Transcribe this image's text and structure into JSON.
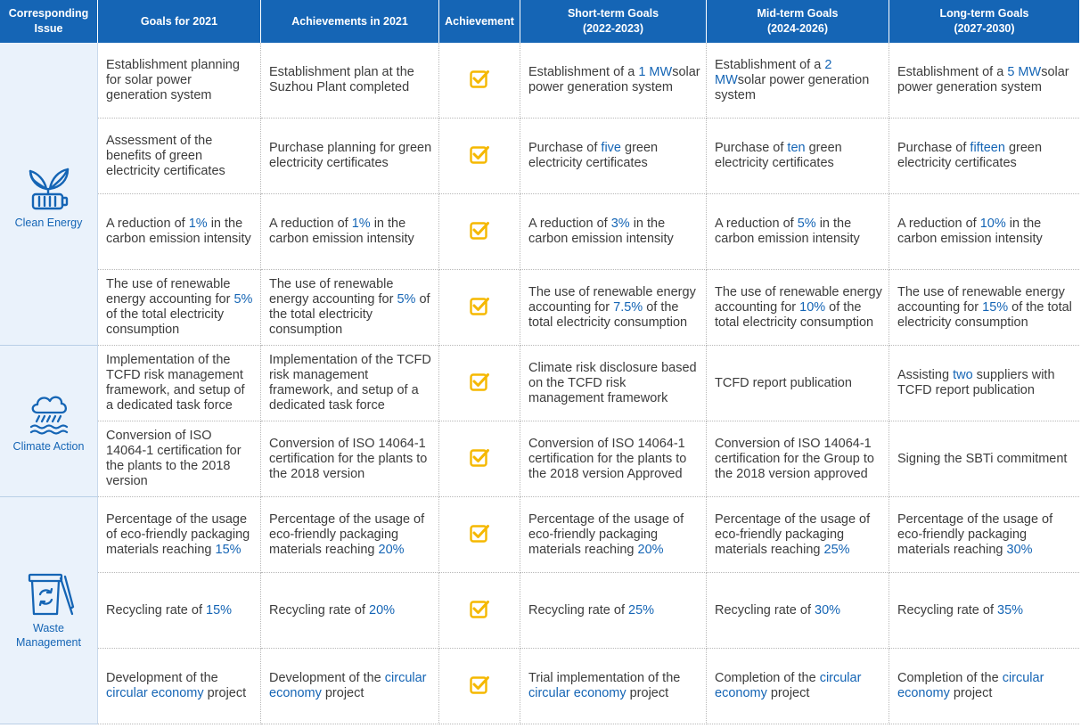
{
  "colors": {
    "header_bg": "#1565b5",
    "highlight": "#1565b5",
    "issue_bg": "#eaf2fb",
    "check": "#f5b800"
  },
  "headers": {
    "issue": [
      "Corresponding",
      "Issue"
    ],
    "goals_2021": "Goals for 2021",
    "achievements_2021": "Achievements in 2021",
    "achievement": "Achievement",
    "short_term": [
      "Short-term Goals",
      "(2022-2023)"
    ],
    "mid_term": [
      "Mid-term Goals",
      "(2024-2026)"
    ],
    "long_term": [
      "Long-term Goals",
      "(2027-2030)"
    ]
  },
  "issues": {
    "clean_energy": {
      "name": "Clean Energy",
      "icon": "plant-battery-icon"
    },
    "climate_action": {
      "name": "Climate Action",
      "icon": "cloud-rain-icon"
    },
    "waste_management": {
      "name": [
        "Waste",
        "Management"
      ],
      "icon": "recycle-bin-icon"
    }
  },
  "rows": [
    {
      "goal": [
        [
          "Establishment planning for solar power generation system",
          false
        ]
      ],
      "achieved": [
        [
          "Establishment plan at the Suzhou Plant completed",
          false
        ]
      ],
      "status": "checked",
      "short": [
        [
          "Establishment of a ",
          false
        ],
        [
          "1 MW",
          true
        ],
        [
          "solar power generation system",
          false
        ]
      ],
      "mid": [
        [
          "Establishment of a ",
          false
        ],
        [
          "2 MW",
          true
        ],
        [
          "solar power generation system",
          false
        ]
      ],
      "long": [
        [
          "Establishment of a ",
          false
        ],
        [
          "5 MW",
          true
        ],
        [
          "solar power generation system",
          false
        ]
      ]
    },
    {
      "goal": [
        [
          "Assessment of the benefits of green electricity certificates",
          false
        ]
      ],
      "achieved": [
        [
          "Purchase planning for green electricity certificates",
          false
        ]
      ],
      "status": "checked",
      "short": [
        [
          "Purchase of ",
          false
        ],
        [
          "five",
          true
        ],
        [
          " green electricity certificates",
          false
        ]
      ],
      "mid": [
        [
          "Purchase of ",
          false
        ],
        [
          "ten",
          true
        ],
        [
          " green electricity certificates",
          false
        ]
      ],
      "long": [
        [
          "Purchase of ",
          false
        ],
        [
          "fifteen",
          true
        ],
        [
          " green electricity certificates",
          false
        ]
      ]
    },
    {
      "goal": [
        [
          "A reduction of ",
          false
        ],
        [
          "1%",
          true
        ],
        [
          " in the carbon emission intensity",
          false
        ]
      ],
      "achieved": [
        [
          "A reduction of ",
          false
        ],
        [
          "1%",
          true
        ],
        [
          " in the carbon emission intensity",
          false
        ]
      ],
      "status": "checked",
      "short": [
        [
          "A reduction of ",
          false
        ],
        [
          "3%",
          true
        ],
        [
          " in the carbon emission intensity",
          false
        ]
      ],
      "mid": [
        [
          "A reduction of ",
          false
        ],
        [
          "5%",
          true
        ],
        [
          " in the carbon emission intensity",
          false
        ]
      ],
      "long": [
        [
          "A reduction of ",
          false
        ],
        [
          "10%",
          true
        ],
        [
          " in the carbon emission intensity",
          false
        ]
      ]
    },
    {
      "goal": [
        [
          "The use of renewable energy accounting for ",
          false
        ],
        [
          "5%",
          true
        ],
        [
          " of the total electricity consumption",
          false
        ]
      ],
      "achieved": [
        [
          "The use of renewable energy accounting for ",
          false
        ],
        [
          "5%",
          true
        ],
        [
          " of the total electricity consumption",
          false
        ]
      ],
      "status": "checked",
      "short": [
        [
          "The use of renewable energy accounting for ",
          false
        ],
        [
          "7.5%",
          true
        ],
        [
          " of the total electricity consumption",
          false
        ]
      ],
      "mid": [
        [
          "The use of renewable energy accounting for ",
          false
        ],
        [
          "10%",
          true
        ],
        [
          " of the total electricity consumption",
          false
        ]
      ],
      "long": [
        [
          "The use of renewable energy accounting for ",
          false
        ],
        [
          "15%",
          true
        ],
        [
          " of the total electricity consumption",
          false
        ]
      ]
    },
    {
      "goal": [
        [
          "Implementation of the TCFD risk management framework, and setup of a dedicated task force",
          false
        ]
      ],
      "achieved": [
        [
          "Implementation of the TCFD risk management framework, and setup of a dedicated task force",
          false
        ]
      ],
      "status": "checked",
      "short": [
        [
          "Climate risk disclosure based on the TCFD risk management framework",
          false
        ]
      ],
      "mid": [
        [
          "TCFD report publication",
          false
        ]
      ],
      "long": [
        [
          "Assisting ",
          false
        ],
        [
          "two",
          true
        ],
        [
          " suppliers with TCFD report publication",
          false
        ]
      ]
    },
    {
      "goal": [
        [
          "Conversion of ISO 14064-1 certification for the plants to the 2018 version",
          false
        ]
      ],
      "achieved": [
        [
          "Conversion of ISO 14064-1 certification for the plants to the 2018 version",
          false
        ]
      ],
      "status": "checked",
      "short": [
        [
          "Conversion of ISO 14064-1 certification for the plants to the 2018 version Approved",
          false
        ]
      ],
      "mid": [
        [
          "Conversion of ISO 14064-1 certification for the Group to the 2018 version approved",
          false
        ]
      ],
      "long": [
        [
          "Signing the SBTi commitment",
          false
        ]
      ]
    },
    {
      "goal": [
        [
          "Percentage of the usage of eco-friendly packaging materials reaching ",
          false
        ],
        [
          "15%",
          true
        ]
      ],
      "achieved": [
        [
          "Percentage of the usage of eco-friendly packaging materials reaching ",
          false
        ],
        [
          "20%",
          true
        ]
      ],
      "status": "checked",
      "short": [
        [
          "Percentage of the usage of eco-friendly packaging materials reaching ",
          false
        ],
        [
          "20%",
          true
        ]
      ],
      "mid": [
        [
          "Percentage of the usage of eco-friendly packaging materials reaching ",
          false
        ],
        [
          "25%",
          true
        ]
      ],
      "long": [
        [
          "Percentage of the usage of eco-friendly packaging materials reaching ",
          false
        ],
        [
          "30%",
          true
        ]
      ]
    },
    {
      "goal": [
        [
          "Recycling rate of ",
          false
        ],
        [
          "15%",
          true
        ]
      ],
      "achieved": [
        [
          "Recycling rate of ",
          false
        ],
        [
          "20%",
          true
        ]
      ],
      "status": "checked",
      "short": [
        [
          "Recycling rate of ",
          false
        ],
        [
          "25%",
          true
        ]
      ],
      "mid": [
        [
          "Recycling rate of ",
          false
        ],
        [
          "30%",
          true
        ]
      ],
      "long": [
        [
          "Recycling rate of ",
          false
        ],
        [
          "35%",
          true
        ]
      ]
    },
    {
      "goal": [
        [
          "Development of the ",
          false
        ],
        [
          "circular economy",
          true
        ],
        [
          " project",
          false
        ]
      ],
      "achieved": [
        [
          "Development of the ",
          false
        ],
        [
          "circular economy",
          true
        ],
        [
          " project",
          false
        ]
      ],
      "status": "checked",
      "short": [
        [
          "Trial implementation of the ",
          false
        ],
        [
          "circular economy",
          true
        ],
        [
          " project",
          false
        ]
      ],
      "mid": [
        [
          "Completion of the ",
          false
        ],
        [
          "circular economy",
          true
        ],
        [
          " project",
          false
        ]
      ],
      "long": [
        [
          "Completion of the ",
          false
        ],
        [
          "circular economy",
          true
        ],
        [
          " project",
          false
        ]
      ]
    }
  ]
}
